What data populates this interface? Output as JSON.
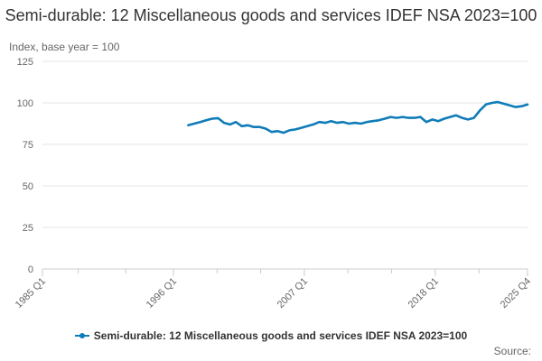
{
  "chart_data": {
    "type": "line",
    "title": "Semi-durable: 12 Miscellaneous goods and services IDEF NSA 2023=100",
    "ylabel": "Index, base year = 100",
    "ylim": [
      0,
      125
    ],
    "yticks": [
      0,
      25,
      50,
      75,
      100,
      125
    ],
    "xlim": [
      1985.0,
      2025.75
    ],
    "xticks": [
      {
        "label": "1985 Q1",
        "value": 1985.0
      },
      {
        "label": "1996 Q1",
        "value": 1996.0
      },
      {
        "label": "2007 Q1",
        "value": 2007.0
      },
      {
        "label": "2018 Q1",
        "value": 2018.0
      },
      {
        "label": "2025 Q4",
        "value": 2025.75
      }
    ],
    "minor_xticks": [
      1988.0,
      1992.0,
      1999.67,
      2003.33,
      2010.67,
      2014.33,
      2021.67
    ],
    "series": [
      {
        "name": "Semi-durable: 12 Miscellaneous goods and services IDEF NSA 2023=100",
        "color": "#0f7cb8",
        "points": [
          [
            1997.25,
            86.5
          ],
          [
            1997.75,
            87.5
          ],
          [
            1998.25,
            88.5
          ],
          [
            1998.75,
            89.5
          ],
          [
            1999.25,
            90.5
          ],
          [
            1999.75,
            90.8
          ],
          [
            2000.25,
            88.0
          ],
          [
            2000.75,
            87.0
          ],
          [
            2001.25,
            88.5
          ],
          [
            2001.75,
            86.0
          ],
          [
            2002.25,
            86.5
          ],
          [
            2002.75,
            85.5
          ],
          [
            2003.25,
            85.5
          ],
          [
            2003.75,
            84.5
          ],
          [
            2004.25,
            82.5
          ],
          [
            2004.75,
            83.0
          ],
          [
            2005.25,
            82.0
          ],
          [
            2005.75,
            83.5
          ],
          [
            2006.25,
            84.0
          ],
          [
            2006.75,
            85.0
          ],
          [
            2007.25,
            86.0
          ],
          [
            2007.75,
            87.0
          ],
          [
            2008.25,
            88.5
          ],
          [
            2008.75,
            88.0
          ],
          [
            2009.25,
            89.0
          ],
          [
            2009.75,
            88.0
          ],
          [
            2010.25,
            88.5
          ],
          [
            2010.75,
            87.5
          ],
          [
            2011.25,
            88.0
          ],
          [
            2011.75,
            87.5
          ],
          [
            2012.25,
            88.5
          ],
          [
            2012.75,
            89.0
          ],
          [
            2013.25,
            89.5
          ],
          [
            2013.75,
            90.5
          ],
          [
            2014.25,
            91.5
          ],
          [
            2014.75,
            91.0
          ],
          [
            2015.25,
            91.5
          ],
          [
            2015.75,
            91.0
          ],
          [
            2016.25,
            91.0
          ],
          [
            2016.75,
            91.5
          ],
          [
            2017.25,
            88.5
          ],
          [
            2017.75,
            90.0
          ],
          [
            2018.25,
            89.0
          ],
          [
            2018.75,
            90.5
          ],
          [
            2019.25,
            91.5
          ],
          [
            2019.75,
            92.5
          ],
          [
            2020.25,
            91.0
          ],
          [
            2020.75,
            90.0
          ],
          [
            2021.25,
            91.0
          ],
          [
            2021.75,
            95.5
          ],
          [
            2022.25,
            99.0
          ],
          [
            2022.75,
            100.0
          ],
          [
            2023.25,
            100.5
          ],
          [
            2023.75,
            99.5
          ],
          [
            2024.25,
            98.5
          ],
          [
            2024.75,
            97.5
          ],
          [
            2025.25,
            98.0
          ],
          [
            2025.75,
            99.0
          ]
        ]
      }
    ],
    "legend": "Semi-durable: 12 Miscellaneous goods and services IDEF NSA 2023=100",
    "source": "Source:"
  }
}
